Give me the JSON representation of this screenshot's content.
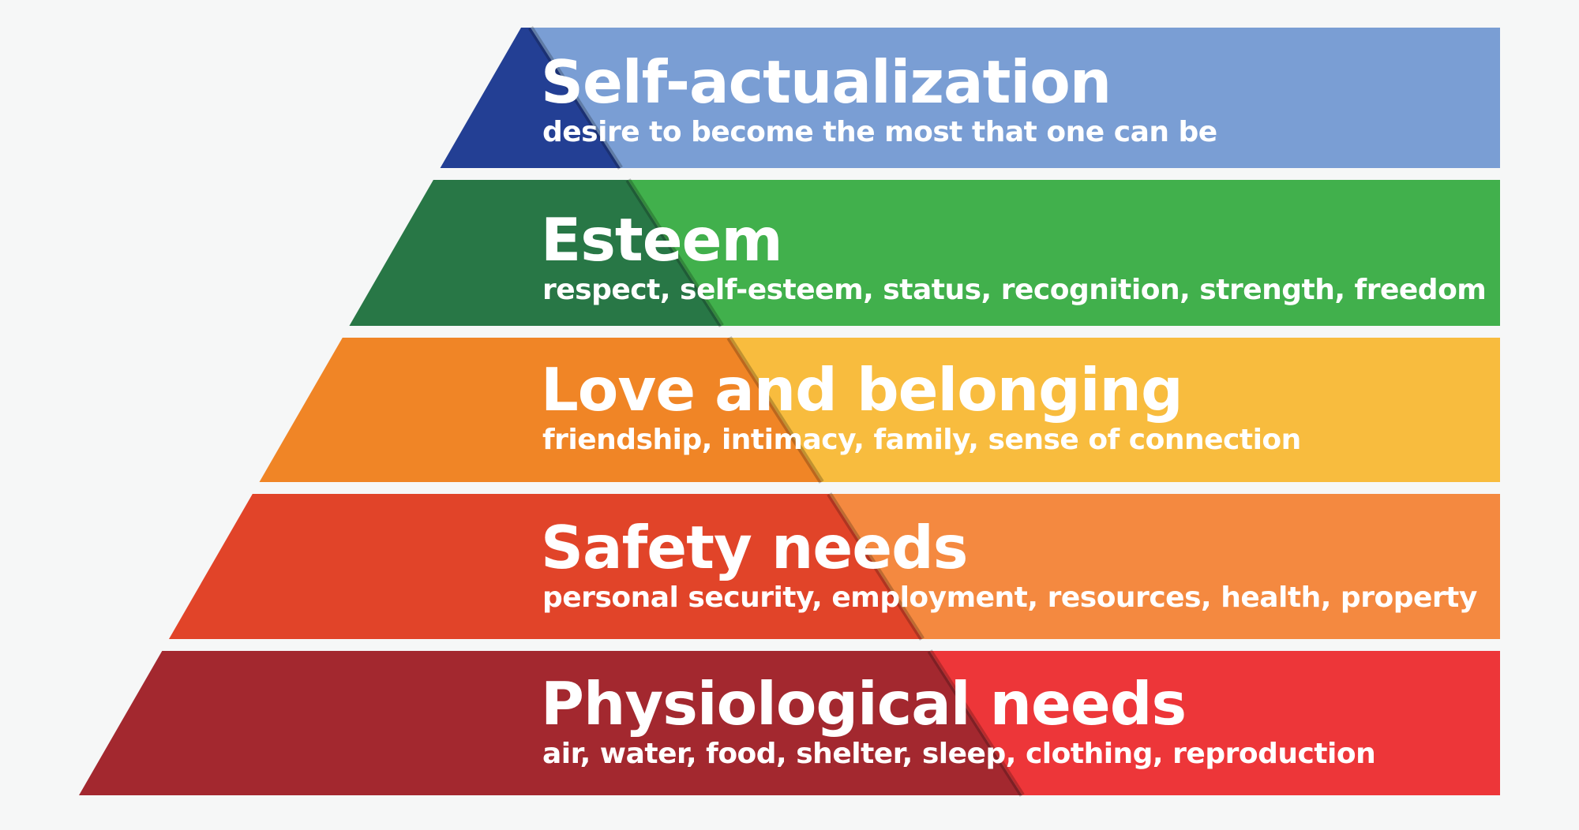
{
  "pyramid": {
    "levels": [
      {
        "title": "Self-actualization",
        "description": "desire to become the most that one can be",
        "bar_color": "#7a9ed4",
        "triangle_color": "#233f94"
      },
      {
        "title": "Esteem",
        "description": "respect, self-esteem, status, recognition, strength, freedom",
        "bar_color": "#41b04c",
        "triangle_color": "#287746"
      },
      {
        "title": "Love and belonging",
        "description": "friendship, intimacy, family, sense of connection",
        "bar_color": "#f8bc3e",
        "triangle_color": "#f08526"
      },
      {
        "title": "Safety needs",
        "description": "personal security, employment, resources, health, property",
        "bar_color": "#f48940",
        "triangle_color": "#e14429"
      },
      {
        "title": "Physiological needs",
        "description": "air, water, food, shelter, sleep, clothing, reproduction",
        "bar_color": "#ed3639",
        "triangle_color": "#a3282f"
      }
    ]
  }
}
